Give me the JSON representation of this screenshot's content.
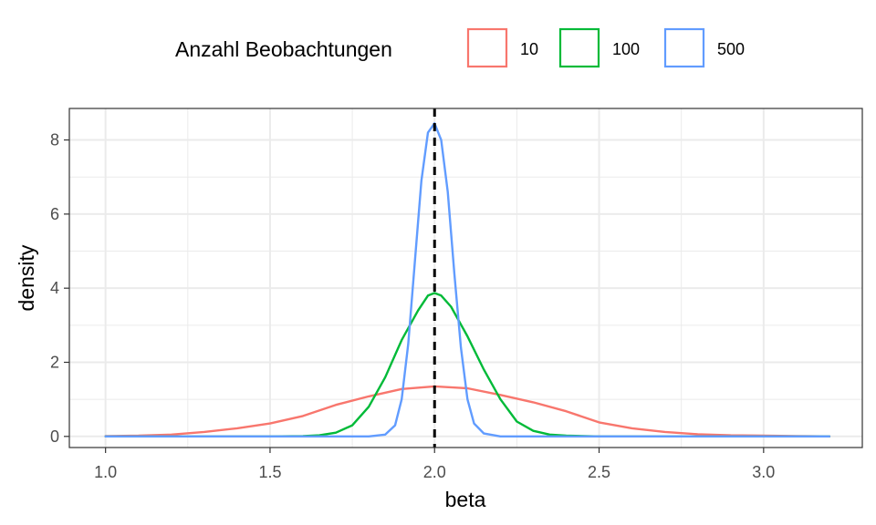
{
  "chart_data": {
    "type": "line",
    "title": "",
    "xlabel": "beta",
    "ylabel": "density",
    "xlim": [
      0.89,
      3.3
    ],
    "ylim": [
      -0.3,
      8.85
    ],
    "x_ticks": [
      1.0,
      1.5,
      2.0,
      2.5,
      3.0
    ],
    "x_tick_labels": [
      "1.0",
      "1.5",
      "2.0",
      "2.5",
      "3.0"
    ],
    "y_ticks": [
      0,
      2,
      4,
      6,
      8
    ],
    "y_tick_labels": [
      "0",
      "2",
      "4",
      "6",
      "8"
    ],
    "grid": true,
    "legend": {
      "title": "Anzahl Beobachtungen",
      "position": "top"
    },
    "reference_line": {
      "x": 2.0,
      "style": "dashed",
      "color": "#000000"
    },
    "series": [
      {
        "name": "10",
        "color": "#F8766D",
        "x": [
          1.0,
          1.1,
          1.2,
          1.3,
          1.4,
          1.5,
          1.6,
          1.7,
          1.8,
          1.9,
          2.0,
          2.1,
          2.2,
          2.3,
          2.4,
          2.5,
          2.6,
          2.7,
          2.8,
          2.9,
          3.0,
          3.1,
          3.2
        ],
        "y": [
          0.01,
          0.02,
          0.05,
          0.12,
          0.22,
          0.35,
          0.55,
          0.85,
          1.08,
          1.28,
          1.35,
          1.3,
          1.12,
          0.92,
          0.68,
          0.38,
          0.22,
          0.12,
          0.06,
          0.03,
          0.02,
          0.01,
          0.0
        ]
      },
      {
        "name": "100",
        "color": "#00BA38",
        "x": [
          1.0,
          1.5,
          1.6,
          1.65,
          1.7,
          1.75,
          1.8,
          1.85,
          1.9,
          1.95,
          1.98,
          2.0,
          2.02,
          2.05,
          2.1,
          2.15,
          2.2,
          2.25,
          2.3,
          2.35,
          2.4,
          2.5,
          3.2
        ],
        "y": [
          0.0,
          0.0,
          0.01,
          0.03,
          0.1,
          0.3,
          0.8,
          1.6,
          2.6,
          3.4,
          3.8,
          3.87,
          3.8,
          3.5,
          2.7,
          1.8,
          1.0,
          0.4,
          0.15,
          0.05,
          0.02,
          0.0,
          0.0
        ]
      },
      {
        "name": "500",
        "color": "#619CFF",
        "x": [
          1.0,
          1.8,
          1.85,
          1.88,
          1.9,
          1.92,
          1.94,
          1.96,
          1.98,
          2.0,
          2.02,
          2.04,
          2.06,
          2.08,
          2.1,
          2.12,
          2.15,
          2.2,
          3.2
        ],
        "y": [
          0.0,
          0.0,
          0.05,
          0.3,
          1.0,
          2.5,
          4.7,
          6.9,
          8.2,
          8.45,
          8.0,
          6.6,
          4.4,
          2.4,
          1.0,
          0.35,
          0.08,
          0.0,
          0.0
        ]
      }
    ]
  }
}
